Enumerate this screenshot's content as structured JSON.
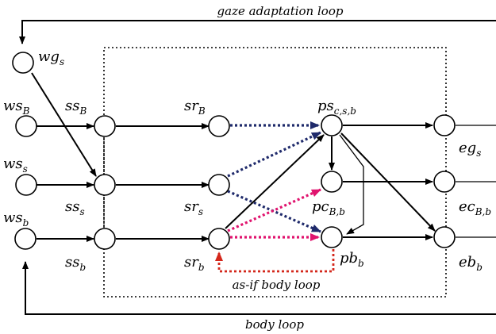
{
  "labels": {
    "gaze_loop": "gaze adaptation loop",
    "body_loop": "body loop",
    "asif_loop": "as-if body loop",
    "wg": {
      "main": "wg",
      "sub": "s"
    },
    "wsB": {
      "main": "ws",
      "sub": "B"
    },
    "wss": {
      "main": "ws",
      "sub": "s"
    },
    "wsb": {
      "main": "ws",
      "sub": "b"
    },
    "ssB": {
      "main": "ss",
      "sub": "B"
    },
    "sss": {
      "main": "ss",
      "sub": "s"
    },
    "ssb": {
      "main": "ss",
      "sub": "b"
    },
    "srB": {
      "main": "sr",
      "sub": "B"
    },
    "srs": {
      "main": "sr",
      "sub": "s"
    },
    "srb": {
      "main": "sr",
      "sub": "b"
    },
    "ps": {
      "main": "ps",
      "sub": "c,s,b"
    },
    "pc": {
      "main": "pc",
      "sub": "B,b"
    },
    "pb": {
      "main": "pb",
      "sub": "b"
    },
    "eg": {
      "main": "eg",
      "sub": "s"
    },
    "ec": {
      "main": "ec",
      "sub": "B,b"
    },
    "eb": {
      "main": "eb",
      "sub": "b"
    }
  },
  "colors": {
    "navy_edge": "#1f2a6b",
    "pink_edge": "#e0136e",
    "red_edge": "#d4271b"
  }
}
